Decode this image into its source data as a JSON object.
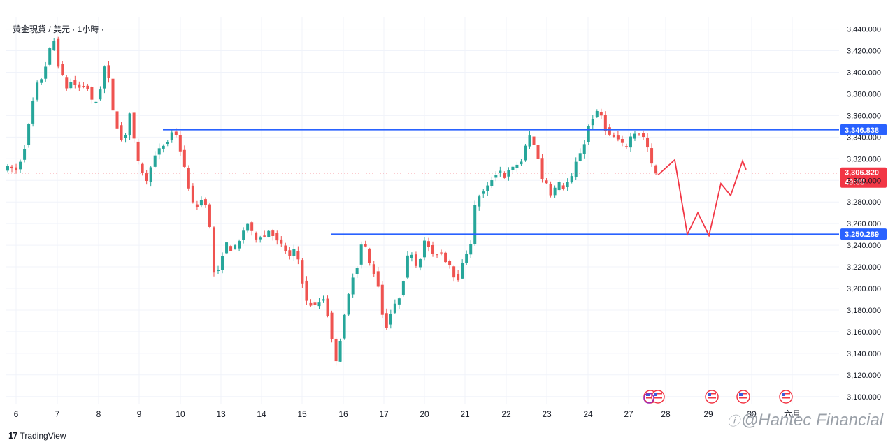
{
  "header": {
    "symbol_title": "黃金現貨 / 美元 · 1小時 ·"
  },
  "footer": {
    "brand": "TradingView",
    "logo_mark": "17"
  },
  "watermark": {
    "text": "@Hantec Financial"
  },
  "colors": {
    "up": "#26a69a",
    "down": "#ef5350",
    "level": "#2962ff",
    "projection": "#f23645",
    "current_tag": "#f23645",
    "grid": "#f0f3fa"
  },
  "chart_data": {
    "type": "candlestick",
    "title": "黃金現貨 / 美元 · 1小時 ·",
    "y_axis": {
      "ticks": [
        3100,
        3120,
        3140,
        3160,
        3180,
        3200,
        3220,
        3240,
        3260,
        3280,
        3300,
        3320,
        3340,
        3360,
        3380,
        3400,
        3420,
        3440
      ],
      "tick_labels": [
        "3,100.000",
        "3,120.000",
        "3,140.000",
        "3,160.000",
        "3,180.000",
        "3,200.000",
        "3,220.000",
        "3,240.000",
        "3,260.000",
        "3,280.000",
        "3,300.000",
        "3,320.000",
        "3,340.000",
        "3,360.000",
        "3,380.000",
        "3,400.000",
        "3,420.000",
        "3,440.000"
      ],
      "ylim": [
        3092,
        3452
      ]
    },
    "x_axis": {
      "tick_labels": [
        "6",
        "7",
        "8",
        "9",
        "10",
        "13",
        "14",
        "15",
        "16",
        "17",
        "20",
        "21",
        "22",
        "23",
        "24",
        "27",
        "28",
        "29",
        "30",
        "六月"
      ]
    },
    "series": [
      {
        "name": "",
        "path": [
          [
            0,
            3311
          ],
          [
            1.5,
            3312
          ],
          [
            3,
            3309
          ],
          [
            4.3,
            3321
          ],
          [
            5,
            3331
          ],
          [
            5.5,
            3334
          ],
          [
            6.3,
            3361
          ],
          [
            7,
            3373
          ],
          [
            7.6,
            3386
          ],
          [
            8.6,
            3393
          ],
          [
            9.5,
            3396
          ],
          [
            10.4,
            3414
          ],
          [
            11.2,
            3423
          ],
          [
            12.1,
            3430
          ],
          [
            12.3,
            3421
          ],
          [
            13,
            3407
          ],
          [
            14,
            3396
          ],
          [
            15,
            3386
          ],
          [
            16,
            3391
          ],
          [
            17.5,
            3387
          ],
          [
            18.6,
            3384
          ],
          [
            19.6,
            3392
          ],
          [
            20.6,
            3375
          ],
          [
            21.7,
            3370
          ],
          [
            22.5,
            3378
          ],
          [
            23.4,
            3391
          ],
          [
            24.3,
            3412
          ],
          [
            25,
            3393
          ],
          [
            25.5,
            3377
          ],
          [
            26.2,
            3361
          ],
          [
            27.3,
            3346
          ],
          [
            28.2,
            3335
          ],
          [
            29,
            3343
          ],
          [
            30,
            3362
          ],
          [
            31,
            3337
          ],
          [
            31.7,
            3320
          ],
          [
            32.4,
            3311
          ],
          [
            33.3,
            3307
          ],
          [
            34.2,
            3296
          ],
          [
            35,
            3314
          ],
          [
            35.7,
            3320
          ],
          [
            36.5,
            3326
          ],
          [
            37.4,
            3330
          ],
          [
            38.2,
            3333
          ],
          [
            39,
            3336
          ],
          [
            39.8,
            3344
          ],
          [
            40.8,
            3345
          ],
          [
            41.5,
            3337
          ],
          [
            42.4,
            3320
          ],
          [
            43.2,
            3308
          ],
          [
            44,
            3294
          ],
          [
            44.8,
            3280
          ],
          [
            45.5,
            3273
          ],
          [
            46.2,
            3278
          ],
          [
            47.3,
            3283
          ],
          [
            48,
            3279
          ],
          [
            48.8,
            3270
          ],
          [
            49.4,
            3228
          ],
          [
            50,
            3215
          ],
          [
            50.7,
            3210
          ],
          [
            51.4,
            3222
          ],
          [
            52.2,
            3235
          ],
          [
            53,
            3241
          ],
          [
            53.7,
            3239
          ],
          [
            54.4,
            3233
          ],
          [
            55.2,
            3240
          ],
          [
            56.2,
            3244
          ],
          [
            57.1,
            3255
          ],
          [
            58,
            3260
          ],
          [
            58.8,
            3253
          ],
          [
            59.7,
            3245
          ],
          [
            60.7,
            3251
          ],
          [
            61.6,
            3244
          ],
          [
            62.5,
            3253
          ],
          [
            63.6,
            3255
          ],
          [
            64.5,
            3244
          ],
          [
            65.4,
            3243
          ],
          [
            66.3,
            3239
          ],
          [
            67.2,
            3234
          ],
          [
            68,
            3229
          ],
          [
            69,
            3235
          ],
          [
            70,
            3227
          ],
          [
            70.8,
            3211
          ],
          [
            71.7,
            3190
          ],
          [
            72.6,
            3183
          ],
          [
            73.5,
            3188
          ],
          [
            74.3,
            3181
          ],
          [
            75.2,
            3189
          ],
          [
            76,
            3191
          ],
          [
            77,
            3176
          ],
          [
            77.8,
            3156
          ],
          [
            78.6,
            3140
          ],
          [
            79.3,
            3130
          ],
          [
            80,
            3153
          ],
          [
            80.8,
            3170
          ],
          [
            81.7,
            3188
          ],
          [
            82.6,
            3206
          ],
          [
            83.4,
            3218
          ],
          [
            84.2,
            3221
          ],
          [
            84.8,
            3236
          ],
          [
            85.3,
            3247
          ],
          [
            86,
            3238
          ],
          [
            86.8,
            3225
          ],
          [
            87.7,
            3218
          ],
          [
            88.6,
            3208
          ],
          [
            89.5,
            3196
          ],
          [
            90.1,
            3172
          ],
          [
            90.7,
            3162
          ],
          [
            91.5,
            3171
          ],
          [
            92.4,
            3181
          ],
          [
            93.3,
            3186
          ],
          [
            94.2,
            3194
          ],
          [
            95.1,
            3210
          ],
          [
            96,
            3229
          ],
          [
            96.6,
            3240
          ],
          [
            97.4,
            3226
          ],
          [
            98.2,
            3220
          ],
          [
            99,
            3229
          ],
          [
            100,
            3243
          ],
          [
            100.6,
            3243
          ],
          [
            101.4,
            3235
          ],
          [
            102.3,
            3228
          ],
          [
            103.2,
            3234
          ],
          [
            104.1,
            3233
          ],
          [
            105,
            3226
          ],
          [
            106,
            3222
          ],
          [
            106.8,
            3214
          ],
          [
            107.6,
            3206
          ],
          [
            108.5,
            3214
          ],
          [
            109.4,
            3228
          ],
          [
            110.3,
            3236
          ],
          [
            111.3,
            3245
          ],
          [
            112,
            3276
          ],
          [
            113,
            3286
          ],
          [
            114,
            3289
          ],
          [
            115,
            3294
          ],
          [
            116,
            3301
          ],
          [
            117,
            3306
          ],
          [
            118,
            3309
          ],
          [
            118.8,
            3303
          ],
          [
            119.6,
            3304
          ],
          [
            120.4,
            3312
          ],
          [
            121.3,
            3311
          ],
          [
            122.2,
            3316
          ],
          [
            123.1,
            3318
          ],
          [
            123.9,
            3329
          ],
          [
            124.7,
            3345
          ],
          [
            125.5,
            3335
          ],
          [
            126.3,
            3331
          ],
          [
            127.1,
            3320
          ],
          [
            127.8,
            3300
          ],
          [
            128.7,
            3302
          ],
          [
            129.6,
            3290
          ],
          [
            130.4,
            3286
          ],
          [
            131.3,
            3296
          ],
          [
            132.1,
            3297
          ],
          [
            132.8,
            3292
          ],
          [
            133.6,
            3297
          ],
          [
            134.6,
            3300
          ],
          [
            135.4,
            3305
          ],
          [
            136.2,
            3320
          ],
          [
            137,
            3326
          ],
          [
            137.8,
            3330
          ],
          [
            138.5,
            3345
          ],
          [
            139.4,
            3354
          ],
          [
            140.3,
            3360
          ],
          [
            141.2,
            3363
          ],
          [
            142,
            3360
          ],
          [
            142.7,
            3350
          ],
          [
            143.5,
            3344
          ],
          [
            144.3,
            3340
          ],
          [
            145,
            3340
          ],
          [
            145.8,
            3338
          ],
          [
            146.7,
            3335
          ],
          [
            147.4,
            3330
          ],
          [
            148.2,
            3333
          ],
          [
            148.9,
            3340
          ],
          [
            149.7,
            3342
          ],
          [
            150.5,
            3347
          ],
          [
            151.3,
            3342
          ],
          [
            152.2,
            3339
          ],
          [
            153,
            3330
          ],
          [
            153.8,
            3317
          ],
          [
            154.6,
            3306
          ],
          [
            155,
            3306
          ]
        ]
      }
    ],
    "horizontal_levels": [
      {
        "price": 3346.838,
        "label": "3,346.838"
      },
      {
        "price": 3250.289,
        "label": "3,250.289"
      }
    ],
    "current_price": {
      "price": 3306.82,
      "label": "3,306.820",
      "countdown": "49:36"
    },
    "projection": {
      "points_price": [
        3305,
        3319,
        3250,
        3270,
        3249,
        3297,
        3286,
        3318,
        3310
      ]
    },
    "event_markers": {
      "count": 5
    },
    "legend": "none",
    "grid": true
  }
}
